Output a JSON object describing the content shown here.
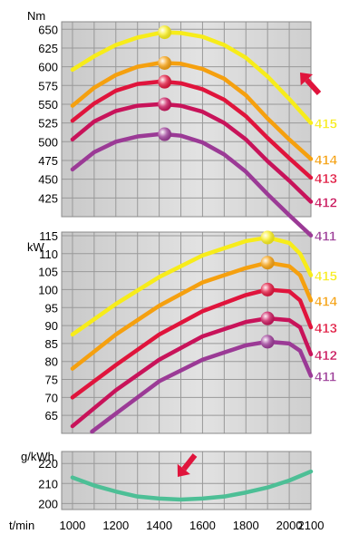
{
  "chart_data": [
    {
      "type": "line",
      "ylabel": "Nm",
      "ylim": [
        400,
        660
      ],
      "xlim": [
        950,
        2100
      ],
      "yticks": [
        650,
        625,
        600,
        575,
        550,
        525,
        500,
        475,
        450,
        425
      ],
      "grid": true,
      "series": [
        {
          "name": "415",
          "color": "#f7ec1a",
          "x": [
            1000,
            1100,
            1200,
            1300,
            1400,
            1425,
            1500,
            1600,
            1700,
            1800,
            1900,
            2000,
            2100
          ],
          "y": [
            596,
            614,
            629,
            639,
            645,
            646,
            645,
            640,
            629,
            612,
            587,
            557,
            525
          ],
          "peak": [
            1425,
            646
          ]
        },
        {
          "name": "414",
          "color": "#f5a00f",
          "x": [
            1000,
            1100,
            1200,
            1300,
            1400,
            1425,
            1500,
            1600,
            1700,
            1800,
            1900,
            2000,
            2100
          ],
          "y": [
            548,
            572,
            589,
            600,
            605,
            605,
            604,
            597,
            584,
            562,
            531,
            503,
            477
          ],
          "peak": [
            1425,
            605
          ]
        },
        {
          "name": "413",
          "color": "#e0143c",
          "x": [
            1000,
            1100,
            1200,
            1300,
            1400,
            1425,
            1500,
            1600,
            1700,
            1800,
            1900,
            2000,
            2100
          ],
          "y": [
            528,
            551,
            568,
            577,
            580,
            580,
            578,
            570,
            556,
            534,
            505,
            478,
            452
          ],
          "peak": [
            1425,
            580
          ]
        },
        {
          "name": "412",
          "color": "#c8135a",
          "x": [
            1000,
            1100,
            1200,
            1300,
            1400,
            1425,
            1500,
            1600,
            1700,
            1800,
            1900,
            2000,
            2100
          ],
          "y": [
            503,
            527,
            541,
            548,
            550,
            550,
            548,
            540,
            525,
            503,
            474,
            448,
            420
          ],
          "peak": [
            1425,
            550
          ]
        },
        {
          "name": "411",
          "color": "#9b3a96",
          "x": [
            1000,
            1100,
            1200,
            1300,
            1400,
            1425,
            1500,
            1600,
            1700,
            1800,
            1900,
            2000,
            2100
          ],
          "y": [
            463,
            486,
            500,
            507,
            510,
            510,
            508,
            499,
            483,
            460,
            430,
            402,
            375
          ],
          "peak": [
            1425,
            510
          ]
        }
      ]
    },
    {
      "type": "line",
      "ylabel": "kW",
      "ylim": [
        60,
        116
      ],
      "xlim": [
        950,
        2100
      ],
      "yticks": [
        115,
        110,
        105,
        100,
        95,
        90,
        85,
        80,
        75,
        70,
        65
      ],
      "grid": true,
      "series": [
        {
          "name": "415",
          "color": "#f7ec1a",
          "x": [
            1000,
            1200,
            1400,
            1600,
            1800,
            1900,
            2000,
            2050,
            2100
          ],
          "y": [
            87.5,
            96,
            103.5,
            109.5,
            113.5,
            114.5,
            113,
            110,
            104
          ],
          "peak": [
            1900,
            114.5
          ]
        },
        {
          "name": "414",
          "color": "#f5a00f",
          "x": [
            1000,
            1200,
            1400,
            1600,
            1800,
            1900,
            2000,
            2050,
            2100
          ],
          "y": [
            78,
            87.5,
            95.5,
            102,
            106,
            107.5,
            106.5,
            104,
            97
          ],
          "peak": [
            1900,
            107.5
          ]
        },
        {
          "name": "413",
          "color": "#e0143c",
          "x": [
            1000,
            1200,
            1400,
            1600,
            1800,
            1900,
            2000,
            2050,
            2100
          ],
          "y": [
            70,
            79,
            87.5,
            94,
            98.5,
            100,
            99.5,
            97,
            89.5
          ],
          "peak": [
            1900,
            100
          ]
        },
        {
          "name": "412",
          "color": "#c8135a",
          "x": [
            1000,
            1200,
            1400,
            1600,
            1800,
            1900,
            2000,
            2050,
            2100
          ],
          "y": [
            62,
            72,
            80.5,
            87,
            91,
            92,
            91.5,
            89.5,
            82
          ],
          "peak": [
            1900,
            92
          ]
        },
        {
          "name": "411",
          "color": "#9b3a96",
          "x": [
            1090,
            1200,
            1400,
            1600,
            1800,
            1900,
            2000,
            2050,
            2100
          ],
          "y": [
            60.5,
            65.5,
            74.5,
            80.5,
            84.5,
            85.5,
            85,
            83,
            76
          ],
          "peak": [
            1900,
            85.5
          ]
        }
      ]
    },
    {
      "type": "line",
      "ylabel": "g/kWh",
      "xlabel": "t/min",
      "ylim": [
        197,
        226
      ],
      "xlim": [
        950,
        2100
      ],
      "yticks": [
        220,
        210,
        200
      ],
      "xticks": [
        1000,
        1200,
        1400,
        1600,
        1800,
        2000,
        2100
      ],
      "grid": true,
      "series": [
        {
          "color": "#4dbf96",
          "x": [
            1000,
            1100,
            1200,
            1300,
            1400,
            1500,
            1600,
            1700,
            1800,
            1900,
            2000,
            2100
          ],
          "y": [
            213,
            209,
            206,
            203.5,
            202.5,
            202,
            202.5,
            203.5,
            205.5,
            208,
            211.5,
            216
          ]
        }
      ]
    }
  ],
  "colors": {
    "panel_bg": "#d9d9d9",
    "grid": "#999999",
    "arrow": "#e0143c",
    "text": "#000000"
  },
  "arrows": [
    "up-right-arrow",
    "down-left-arrow"
  ]
}
